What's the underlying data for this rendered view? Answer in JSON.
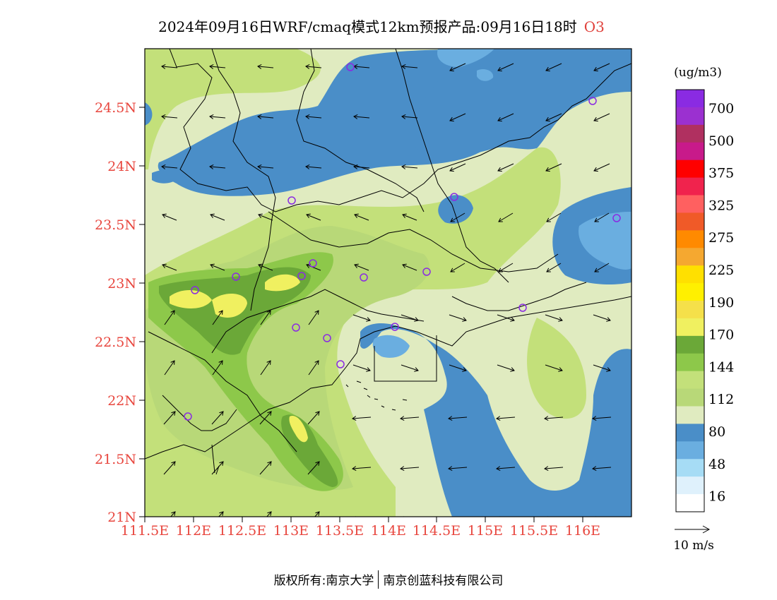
{
  "title": {
    "main": "2024年09月16日WRF/cmaq模式12km预报产品:09月16日18时",
    "species": "O3"
  },
  "axes": {
    "lat_labels": [
      "24.5N",
      "24N",
      "23.5N",
      "23N",
      "22.5N",
      "22N",
      "21.5N",
      "21N"
    ],
    "lon_labels": [
      "111.5E",
      "112E",
      "112.5E",
      "113E",
      "113.5E",
      "114E",
      "114.5E",
      "115E",
      "115.5E",
      "116E"
    ],
    "label_color": "#e8473f"
  },
  "legend": {
    "unit": "(ug/m3)",
    "labels": [
      "700",
      "500",
      "375",
      "325",
      "275",
      "225",
      "190",
      "170",
      "144",
      "112",
      "80",
      "48",
      "16"
    ],
    "colors": [
      "#8a2be2",
      "#9b30d0",
      "#b03060",
      "#c81a8a",
      "#ff0000",
      "#f0234d",
      "#ff6060",
      "#f05a28",
      "#ff8a00",
      "#f5a830",
      "#ffe000",
      "#fff000",
      "#f5e04a",
      "#f0f060",
      "#6ba838",
      "#8dc84a",
      "#c3e07a",
      "#b8d878",
      "#e0ebc0",
      "#4a8ec8",
      "#6aaee0",
      "#a6dcf5",
      "#dff1fc",
      "#ffffff"
    ]
  },
  "wind_scale": {
    "label": "10 m/s"
  },
  "copyright": {
    "left": "版权所有:南京大学",
    "right": "南京创蓝科技有限公司"
  },
  "map_colors": {
    "v48": "#6aaee0",
    "v64": "#4a8ec8",
    "v80": "#e0ebc0",
    "v96": "#c3e07a",
    "v112": "#b8d878",
    "v128": "#8dc84a",
    "v144": "#6ba838",
    "v160": "#f0f060",
    "station": "#8a2be2"
  }
}
